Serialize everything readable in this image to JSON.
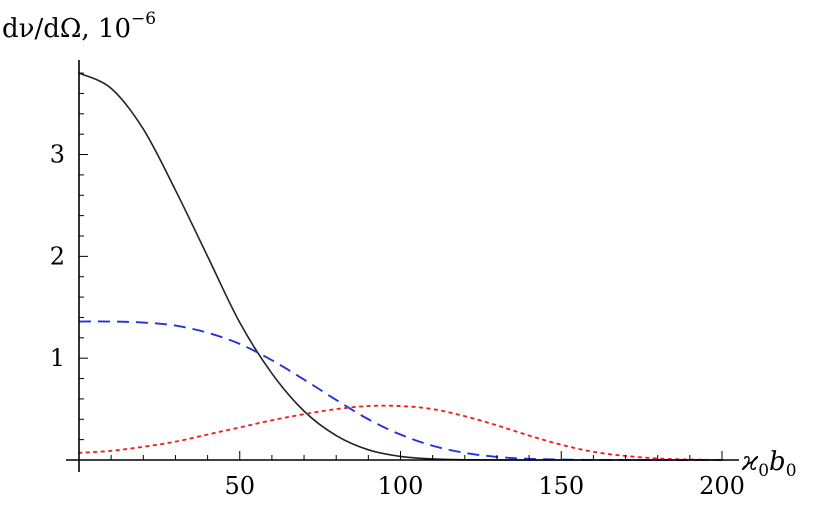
{
  "chart_data": {
    "type": "line",
    "ylabel": {
      "main": "dν/dΩ, 10",
      "exponent": "−6"
    },
    "xlabel": {
      "symbol": "ϰ",
      "sub1": "0",
      "var": "b",
      "sub2": "0"
    },
    "xlim": [
      0,
      200
    ],
    "ylim": [
      0,
      3.85
    ],
    "xticks": [
      {
        "value": 50,
        "label": "50"
      },
      {
        "value": 100,
        "label": "100"
      },
      {
        "value": 150,
        "label": "150"
      },
      {
        "value": 200,
        "label": "200"
      }
    ],
    "yticks": [
      {
        "value": 1,
        "label": "1"
      },
      {
        "value": 2,
        "label": "2"
      },
      {
        "value": 3,
        "label": "3"
      }
    ],
    "grid": false,
    "legend": "none",
    "series": [
      {
        "style": "solid",
        "color": "#222222",
        "x": [
          0,
          10,
          20,
          30,
          40,
          50,
          60,
          70,
          80,
          90,
          100,
          110,
          120,
          140,
          160,
          200
        ],
        "y": [
          3.8,
          3.65,
          3.25,
          2.65,
          2.0,
          1.35,
          0.85,
          0.48,
          0.24,
          0.1,
          0.035,
          0.01,
          0.002,
          0.0,
          0.0,
          0.0
        ]
      },
      {
        "style": "dashed",
        "color": "#2233dd",
        "x": [
          0,
          10,
          20,
          30,
          40,
          50,
          60,
          70,
          80,
          90,
          100,
          110,
          120,
          130,
          140,
          150,
          160,
          180,
          200
        ],
        "y": [
          1.36,
          1.36,
          1.35,
          1.32,
          1.25,
          1.14,
          0.98,
          0.79,
          0.59,
          0.4,
          0.25,
          0.14,
          0.07,
          0.03,
          0.012,
          0.004,
          0.001,
          0.0,
          0.0
        ]
      },
      {
        "style": "dotted",
        "color": "#ee2222",
        "x": [
          0,
          10,
          20,
          30,
          40,
          50,
          60,
          70,
          80,
          90,
          100,
          110,
          120,
          130,
          140,
          150,
          160,
          170,
          180,
          190,
          200
        ],
        "y": [
          0.07,
          0.09,
          0.13,
          0.18,
          0.25,
          0.32,
          0.39,
          0.45,
          0.5,
          0.53,
          0.53,
          0.5,
          0.43,
          0.34,
          0.24,
          0.15,
          0.08,
          0.04,
          0.015,
          0.005,
          0.0
        ]
      }
    ]
  }
}
